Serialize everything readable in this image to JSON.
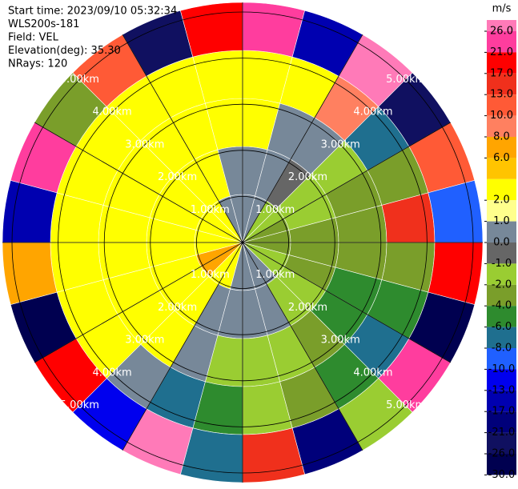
{
  "chart_data": {
    "type": "ppi",
    "header": [
      "Start time: 2023/09/10 05:32:34",
      "WLS200s-181",
      "Field: VEL",
      "Elevation(deg): 35.30",
      "NRays: 120"
    ],
    "range_rings": [
      "1.00km",
      "2.00km",
      "3.00km",
      "4.00km",
      "5.00km"
    ],
    "gates": [
      [
        0.5,
        0.5,
        -1.5,
        -1.5,
        -3,
        -3,
        -3,
        -1.5,
        -1.5,
        0.5,
        0.5,
        0.5,
        0.5,
        3,
        5,
        7,
        7,
        5,
        3,
        3,
        3,
        3,
        0.5,
        0.5
      ],
      [
        0.5,
        0.5,
        -0.5,
        -1.5,
        -1.5,
        -3,
        -3,
        -3,
        -1.5,
        -1.5,
        0.5,
        0.5,
        0.5,
        0.5,
        3,
        3,
        3,
        3,
        3,
        3,
        3,
        3,
        3,
        0.5
      ],
      [
        3,
        0.5,
        0.5,
        -1.5,
        -3,
        -3,
        -3,
        -5,
        -5,
        -3,
        -1.5,
        -1.5,
        -1.5,
        0.5,
        3,
        3,
        3,
        3,
        3,
        3,
        3,
        3,
        3,
        3
      ],
      [
        5,
        3,
        9,
        -7,
        -3,
        14,
        -3,
        -5,
        -7,
        -5,
        -3,
        -1.5,
        -5,
        -7,
        0.5,
        3,
        5,
        3,
        3,
        5,
        3,
        3,
        5,
        5
      ],
      [
        22,
        -15,
        28,
        -23,
        11,
        -9,
        18,
        -27,
        24,
        -1.5,
        -19,
        15,
        -7,
        27,
        -11,
        20,
        -28,
        7,
        -16,
        23,
        -3,
        12,
        -22,
        19
      ]
    ],
    "colorbar": {
      "title": "m/s",
      "ticks": [
        {
          "value": 26,
          "label": "26.0"
        },
        {
          "value": 21,
          "label": "21.0"
        },
        {
          "value": 17,
          "label": "17.0"
        },
        {
          "value": 13,
          "label": "13.0"
        },
        {
          "value": 10,
          "label": "10.0"
        },
        {
          "value": 8,
          "label": "8.0"
        },
        {
          "value": 6,
          "label": "6.0"
        },
        null,
        {
          "value": 2,
          "label": "2.0"
        },
        {
          "value": 1,
          "label": "1.0"
        },
        {
          "value": 0,
          "label": "0.0"
        },
        {
          "value": -1,
          "label": "-1.0"
        },
        {
          "value": -2,
          "label": "-2.0"
        },
        {
          "value": -4,
          "label": "-4.0"
        },
        {
          "value": -6,
          "label": "-6.0"
        },
        {
          "value": -8,
          "label": "-8.0"
        },
        {
          "value": -10,
          "label": "-10.0"
        },
        {
          "value": -13,
          "label": "-13.0"
        },
        {
          "value": -17,
          "label": "-17.0"
        },
        {
          "value": -21,
          "label": "-21.0"
        },
        {
          "value": -26,
          "label": "-26.0"
        },
        {
          "value": -30,
          "label": "-30.0"
        }
      ],
      "colors": [
        "#ff7ab8",
        "#ff3d9e",
        "#ff0000",
        "#f0301c",
        "#ff5a36",
        "#ff8060",
        "#ffa500",
        "#ffc400",
        "#ffff00",
        "#ffff8c",
        "#778899",
        "#666666",
        "#9acd32",
        "#7a9e2a",
        "#2e8b2e",
        "#1f6f8f",
        "#2060ff",
        "#0000ee",
        "#0000b0",
        "#00007a",
        "#101060",
        "#000050"
      ]
    }
  }
}
